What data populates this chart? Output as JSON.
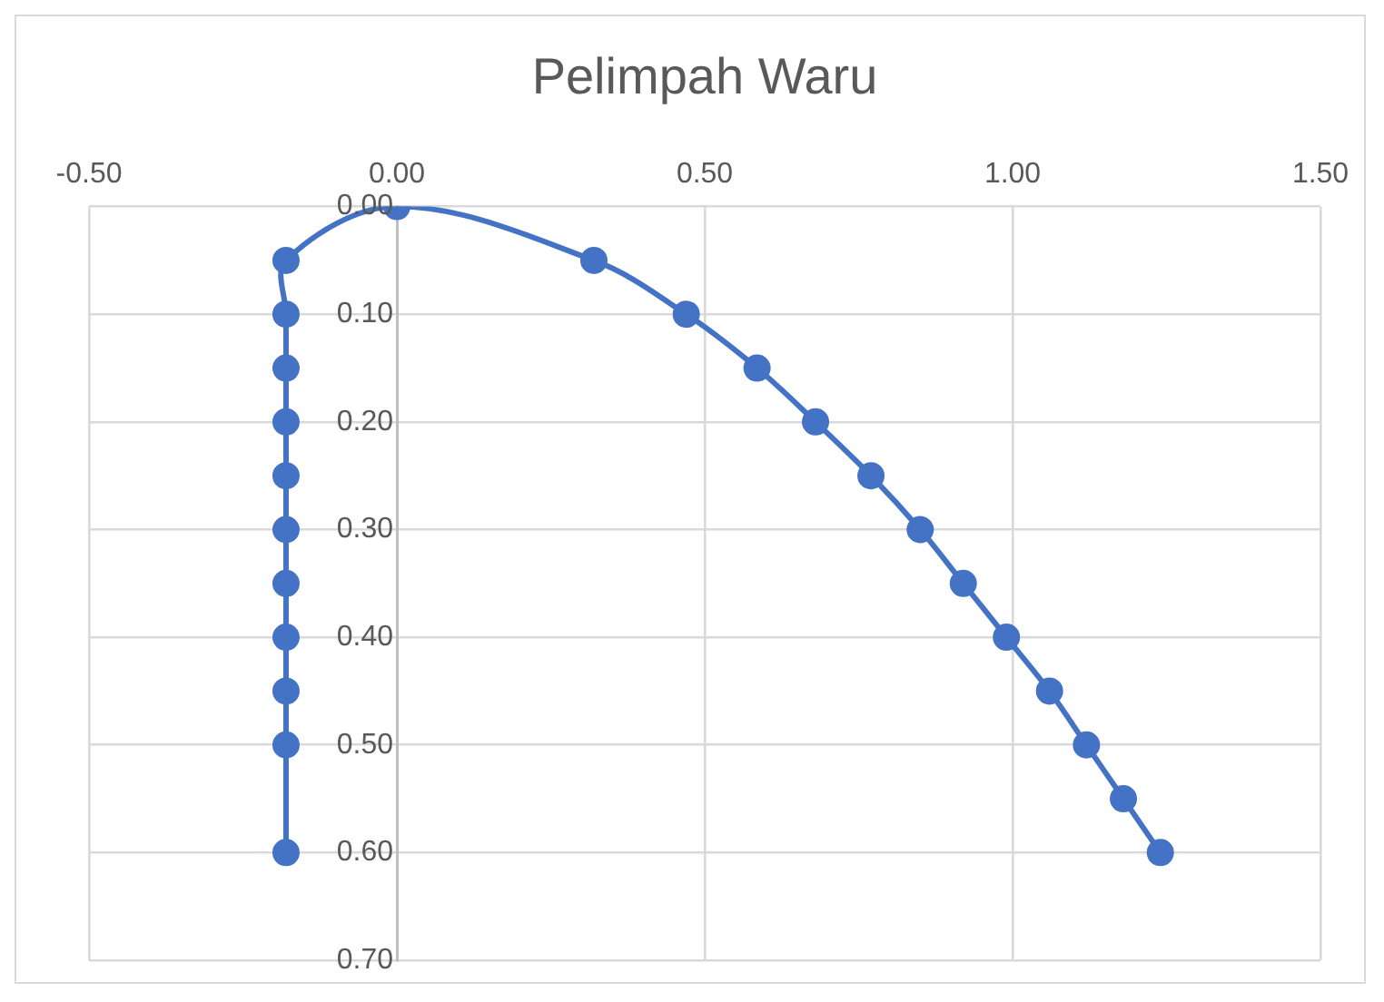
{
  "chart_data": {
    "type": "scatter",
    "title": "Pelimpah Waru",
    "x": [
      -0.18,
      -0.18,
      -0.18,
      -0.18,
      -0.18,
      -0.18,
      -0.18,
      -0.18,
      -0.18,
      -0.18,
      -0.18,
      0,
      0.32,
      0.47,
      0.585,
      0.68,
      0.77,
      0.85,
      0.92,
      0.99,
      1.06,
      1.12,
      1.18,
      1.24
    ],
    "series": [
      {
        "type": "line",
        "color": "#4472c4",
        "values": [
          0.6,
          0.5,
          0.45,
          0.4,
          0.35,
          0.3,
          0.25,
          0.2,
          0.15,
          0.1,
          0.05,
          0,
          0.05,
          0.1,
          0.15,
          0.2,
          0.25,
          0.3,
          0.35,
          0.4,
          0.45,
          0.5,
          0.55,
          0.6
        ]
      }
    ],
    "marker": "circle",
    "line_style": "solid",
    "grid": true,
    "legend": false,
    "xlim": [
      -0.5,
      1.5
    ],
    "xticks": [
      {
        "value": -0.5,
        "label": "-0.50"
      },
      {
        "value": 0,
        "label": "0.00"
      },
      {
        "value": 0.5,
        "label": "0.50"
      },
      {
        "value": 1,
        "label": "1.00"
      },
      {
        "value": 1.5,
        "label": "1.50"
      }
    ],
    "ylim": [
      0.7,
      0
    ],
    "yticks": [
      {
        "value": 0,
        "label": "0.00"
      },
      {
        "value": 0.1,
        "label": "0.10"
      },
      {
        "value": 0.2,
        "label": "0.20"
      },
      {
        "value": 0.3,
        "label": "0.30"
      },
      {
        "value": 0.4,
        "label": "0.40"
      },
      {
        "value": 0.5,
        "label": "0.50"
      },
      {
        "value": 0.6,
        "label": "0.60"
      },
      {
        "value": 0.7,
        "label": "0.70"
      }
    ]
  }
}
